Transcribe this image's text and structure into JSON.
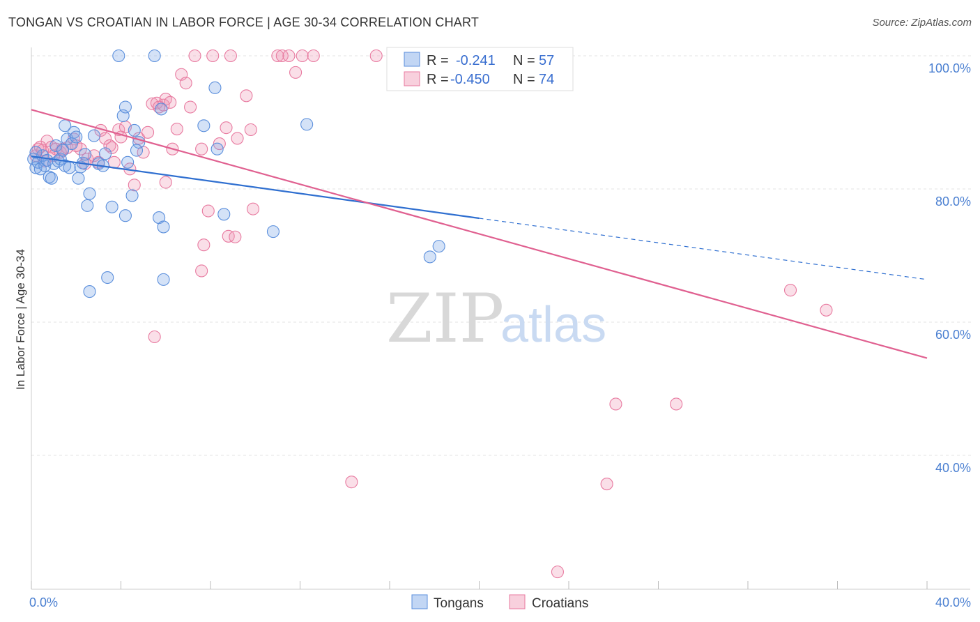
{
  "title": "TONGAN VS CROATIAN IN LABOR FORCE | AGE 30-34 CORRELATION CHART",
  "source": "Source: ZipAtlas.com",
  "watermark": {
    "zip": "ZIP",
    "atlas": "atlas"
  },
  "colors": {
    "tongans": "#5b8fdc",
    "tongans_fill": "rgba(120,165,230,0.32)",
    "croatians": "#e87aa0",
    "croatians_fill": "rgba(240,150,180,0.30)",
    "tongans_line": "#2f6fd0",
    "croatians_line": "#e06090",
    "grid": "#e3e3e3",
    "axis_label": "#4a7fd1"
  },
  "legend": {
    "r_label": "R =",
    "n_label": "N =",
    "tongans": {
      "r": "-0.241",
      "n": "57"
    },
    "croatians": {
      "r": "-0.450",
      "n": "74"
    }
  },
  "chart_data": {
    "type": "scatter",
    "title": "TONGAN VS CROATIAN IN LABOR FORCE | AGE 30-34 CORRELATION CHART",
    "xlabel": "",
    "ylabel": "In Labor Force | Age 30-34",
    "xlim": [
      0,
      40
    ],
    "ylim": [
      20,
      102
    ],
    "x_tick_labels": [
      "0.0%",
      "40.0%"
    ],
    "y_ticks": [
      40,
      60,
      80,
      100
    ],
    "y_tick_labels": [
      "40.0%",
      "60.0%",
      "80.0%",
      "100.0%"
    ],
    "grid": true,
    "legend_position": "top-center",
    "series": [
      {
        "name": "Tongans",
        "points": [
          [
            0.1,
            84.5
          ],
          [
            0.2,
            83.2
          ],
          [
            0.3,
            84.0
          ],
          [
            0.4,
            83.0
          ],
          [
            0.5,
            85.0
          ],
          [
            0.6,
            83.5
          ],
          [
            0.7,
            84.3
          ],
          [
            0.8,
            81.8
          ],
          [
            0.9,
            81.6
          ],
          [
            1.0,
            83.8
          ],
          [
            1.1,
            86.5
          ],
          [
            1.2,
            84.2
          ],
          [
            1.3,
            84.5
          ],
          [
            1.4,
            85.8
          ],
          [
            1.5,
            83.5
          ],
          [
            1.6,
            87.5
          ],
          [
            1.7,
            83.2
          ],
          [
            1.8,
            86.8
          ],
          [
            1.9,
            88.5
          ],
          [
            2.0,
            87.8
          ],
          [
            2.1,
            81.6
          ],
          [
            2.2,
            83.3
          ],
          [
            2.3,
            83.9
          ],
          [
            2.4,
            85.2
          ],
          [
            2.6,
            79.3
          ],
          [
            2.5,
            77.5
          ],
          [
            3.0,
            83.8
          ],
          [
            3.2,
            83.5
          ],
          [
            3.6,
            77.3
          ],
          [
            4.2,
            76.0
          ],
          [
            4.3,
            84.0
          ],
          [
            4.5,
            79.0
          ],
          [
            4.6,
            88.8
          ],
          [
            4.1,
            91.0
          ],
          [
            4.2,
            92.3
          ],
          [
            3.9,
            100.0
          ],
          [
            5.5,
            100.0
          ],
          [
            4.8,
            87.0
          ],
          [
            4.7,
            85.8
          ],
          [
            5.8,
            92.0
          ],
          [
            5.7,
            75.7
          ],
          [
            5.9,
            74.3
          ],
          [
            7.7,
            89.5
          ],
          [
            8.2,
            95.2
          ],
          [
            8.6,
            76.2
          ],
          [
            8.3,
            86.0
          ],
          [
            10.8,
            73.6
          ],
          [
            12.3,
            89.7
          ],
          [
            17.8,
            69.8
          ],
          [
            18.2,
            71.4
          ],
          [
            3.4,
            66.7
          ],
          [
            2.6,
            64.6
          ],
          [
            5.9,
            66.4
          ],
          [
            1.5,
            89.5
          ],
          [
            2.8,
            88.0
          ],
          [
            3.3,
            85.3
          ],
          [
            0.2,
            85.5
          ]
        ],
        "regression": {
          "x": [
            0,
            20
          ],
          "y": [
            84.9,
            75.6
          ],
          "dashed_to": {
            "x": 40,
            "y": 66.4
          }
        }
      },
      {
        "name": "Croatians",
        "points": [
          [
            0.2,
            85.0
          ],
          [
            0.3,
            86.0
          ],
          [
            0.5,
            85.8
          ],
          [
            0.7,
            87.2
          ],
          [
            0.9,
            86.3
          ],
          [
            1.1,
            86.0
          ],
          [
            1.3,
            85.5
          ],
          [
            1.6,
            86.2
          ],
          [
            1.9,
            87.5
          ],
          [
            2.2,
            86.0
          ],
          [
            2.5,
            84.5
          ],
          [
            2.8,
            85.0
          ],
          [
            3.0,
            84.0
          ],
          [
            3.1,
            88.8
          ],
          [
            3.3,
            87.6
          ],
          [
            3.5,
            86.5
          ],
          [
            3.7,
            84.0
          ],
          [
            3.9,
            88.9
          ],
          [
            4.2,
            89.3
          ],
          [
            4.4,
            83.0
          ],
          [
            4.6,
            80.6
          ],
          [
            4.8,
            87.6
          ],
          [
            5.0,
            85.5
          ],
          [
            5.2,
            88.5
          ],
          [
            5.4,
            92.8
          ],
          [
            5.6,
            92.9
          ],
          [
            5.9,
            92.6
          ],
          [
            6.0,
            93.5
          ],
          [
            6.3,
            86.0
          ],
          [
            6.5,
            89.0
          ],
          [
            6.7,
            97.2
          ],
          [
            6.9,
            95.9
          ],
          [
            7.1,
            92.3
          ],
          [
            7.3,
            100.0
          ],
          [
            7.6,
            86.0
          ],
          [
            7.9,
            76.7
          ],
          [
            8.1,
            100.0
          ],
          [
            8.4,
            86.8
          ],
          [
            8.7,
            89.2
          ],
          [
            8.9,
            100.0
          ],
          [
            9.2,
            87.6
          ],
          [
            9.6,
            94.0
          ],
          [
            9.8,
            88.9
          ],
          [
            9.9,
            77.0
          ],
          [
            11.0,
            100.0
          ],
          [
            11.2,
            100.0
          ],
          [
            11.5,
            100.0
          ],
          [
            11.8,
            97.5
          ],
          [
            12.1,
            100.0
          ],
          [
            12.6,
            100.0
          ],
          [
            15.4,
            100.0
          ],
          [
            7.7,
            71.6
          ],
          [
            8.8,
            72.9
          ],
          [
            9.1,
            72.8
          ],
          [
            7.6,
            67.7
          ],
          [
            6.0,
            81.0
          ],
          [
            5.5,
            57.8
          ],
          [
            14.3,
            36.0
          ],
          [
            26.1,
            47.7
          ],
          [
            28.8,
            47.7
          ],
          [
            25.7,
            35.7
          ],
          [
            33.9,
            64.8
          ],
          [
            35.5,
            61.8
          ],
          [
            23.5,
            22.5
          ],
          [
            0.4,
            86.3
          ],
          [
            0.6,
            84.2
          ],
          [
            1.0,
            85.0
          ],
          [
            1.4,
            86.0
          ],
          [
            2.0,
            86.5
          ],
          [
            2.4,
            83.8
          ],
          [
            3.6,
            86.2
          ],
          [
            4.0,
            87.8
          ],
          [
            5.7,
            92.3
          ],
          [
            6.2,
            93.0
          ]
        ],
        "regression": {
          "x": [
            0,
            40
          ],
          "y": [
            91.9,
            54.6
          ]
        }
      }
    ]
  },
  "bottom_legend": {
    "tongans": "Tongans",
    "croatians": "Croatians"
  }
}
